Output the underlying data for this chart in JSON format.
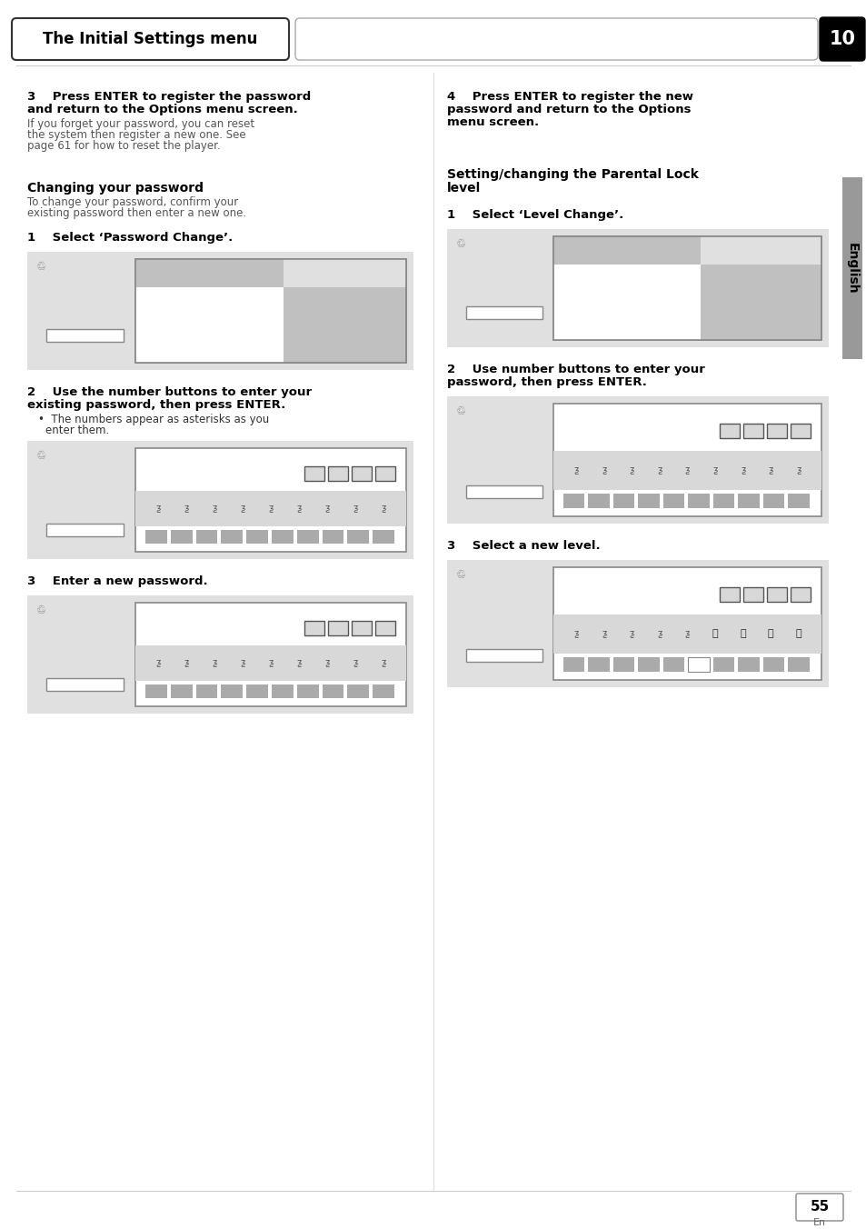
{
  "title": "The Initial Settings menu",
  "chapter_num": "10",
  "page_num": "55",
  "page_label": "En",
  "sidebar_text": "English",
  "bg_color": "#ffffff",
  "screen_bg": "#e0e0e0",
  "screen_inner_bg": "#ffffff",
  "screen_highlight": "#c0c0c0",
  "screen_dark": "#b0b0b0"
}
